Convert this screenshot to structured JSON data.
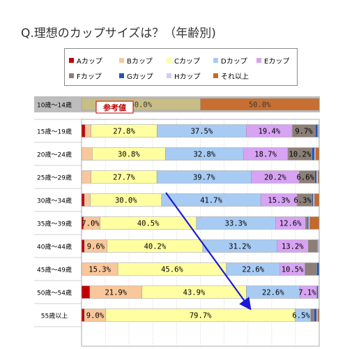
{
  "page": {
    "title": "Q.理想のカップサイズは？（年齢別)"
  },
  "legend_items": [
    {
      "label": "Aカップ",
      "color": "#c00000"
    },
    {
      "label": "Bカップ",
      "color": "#f9c79b"
    },
    {
      "label": "Cカップ",
      "color": "#ffffa1"
    },
    {
      "label": "Dカップ",
      "color": "#a7cbf2"
    },
    {
      "label": "Eカップ",
      "color": "#d7a3f2"
    },
    {
      "label": "Fカップ",
      "color": "#8c7f77"
    },
    {
      "label": "Gカップ",
      "color": "#2157b3"
    },
    {
      "label": "Hカップ",
      "color": "#ccccff"
    },
    {
      "label": "それ以上",
      "color": "#c4692d"
    }
  ],
  "reference_label": "参考値",
  "chart_data": {
    "type": "bar",
    "stacked": true,
    "orientation": "horizontal",
    "unit": "%",
    "title": "Q.理想のカップサイズは？（年齢別)",
    "xlim": [
      0,
      100
    ],
    "grid": true,
    "legend_position": "top",
    "categories": [
      "10歳～14歳",
      "15歳～19歳",
      "20歳～24歳",
      "25歳～29歳",
      "30歳～34歳",
      "35歳～39歳",
      "40歳～44歳",
      "45歳～49歳",
      "50歳～54歳",
      "55歳以上"
    ],
    "series": [
      {
        "name": "Aカップ",
        "values": [
          0,
          1.5,
          0,
          0,
          1.2,
          0.8,
          1.2,
          0,
          3.5,
          1.2
        ]
      },
      {
        "name": "Bカップ",
        "values": [
          0,
          2.5,
          4.5,
          4.0,
          2.5,
          7.0,
          9.6,
          15.3,
          21.9,
          9.0
        ]
      },
      {
        "name": "Cカップ",
        "values": [
          50.0,
          27.8,
          30.8,
          27.7,
          30.0,
          40.5,
          40.2,
          45.6,
          43.9,
          79.7
        ]
      },
      {
        "name": "Dカップ",
        "values": [
          0,
          37.5,
          32.8,
          39.7,
          41.7,
          33.3,
          31.2,
          22.6,
          22.6,
          6.5
        ]
      },
      {
        "name": "Eカップ",
        "values": [
          0,
          19.4,
          18.7,
          20.2,
          15.3,
          12.6,
          13.2,
          10.5,
          7.1,
          0
        ]
      },
      {
        "name": "Fカップ",
        "values": [
          0,
          9.7,
          10.2,
          6.6,
          6.3,
          0.8,
          4.0,
          5.0,
          0,
          1.5
        ]
      },
      {
        "name": "Gカップ",
        "values": [
          0,
          1.0,
          1.0,
          0.7,
          0.5,
          0.5,
          0,
          1.0,
          0.5,
          1.0
        ]
      },
      {
        "name": "Hカップ",
        "values": [
          0,
          0.4,
          0.5,
          0.6,
          0.5,
          0.5,
          0.5,
          0,
          0.5,
          0.5
        ]
      },
      {
        "name": "それ以上",
        "values": [
          50.0,
          0.2,
          1.5,
          0.5,
          2.0,
          4.0,
          0.1,
          0,
          0,
          0.6
        ]
      }
    ],
    "labels": [
      [
        null,
        null,
        "50.0%",
        null,
        null,
        null,
        null,
        null,
        "50.0%"
      ],
      [
        null,
        null,
        "27.8%",
        "37.5%",
        "19.4%",
        "9.7%",
        null,
        null,
        null
      ],
      [
        null,
        null,
        "30.8%",
        "32.8%",
        "18.7%",
        "10.2%",
        null,
        null,
        null
      ],
      [
        null,
        null,
        "27.7%",
        "39.7%",
        "20.2%",
        "6.6%",
        null,
        null,
        null
      ],
      [
        null,
        null,
        "30.0%",
        "41.7%",
        "15.3%",
        "6.3%",
        null,
        null,
        null
      ],
      [
        null,
        "7.0%",
        "40.5%",
        "33.3%",
        "12.6%",
        null,
        null,
        null,
        null
      ],
      [
        null,
        "9.6%",
        "40.2%",
        "31.2%",
        "13.2%",
        null,
        null,
        null,
        null
      ],
      [
        null,
        "15.3%",
        "45.6%",
        "22.6%",
        "10.5%",
        null,
        null,
        null,
        null
      ],
      [
        null,
        "21.9%",
        "43.9%",
        "22.6%",
        "7.1%",
        null,
        null,
        null,
        null
      ],
      [
        null,
        "9.0%",
        "79.7%",
        "6.5%",
        null,
        null,
        null,
        null,
        null
      ]
    ]
  }
}
